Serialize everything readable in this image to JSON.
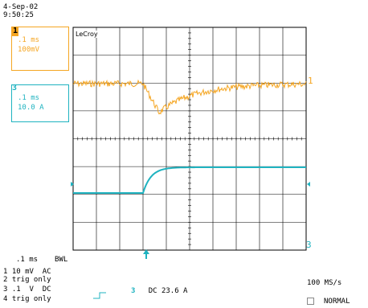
{
  "header": {
    "date": "4-Sep-02",
    "time": "9:50:25"
  },
  "brand": "LeCroy",
  "channels": [
    {
      "num": "1",
      "timebase": ".1 ms",
      "scale": "100mV",
      "color": "#f5a623"
    },
    {
      "num": "3",
      "timebase": ".1 ms",
      "scale": "10.0 A",
      "color": "#1fb3c0"
    }
  ],
  "markers": {
    "ch1_level": "1",
    "ch3_level": "3"
  },
  "footer": {
    "timebase": ".1 ms",
    "bwl": "BWL",
    "line1": "1 10 mV  AC",
    "line2": "2 trig only",
    "line3": "3 .1  V  DC",
    "line4": "4 trig only",
    "ch3_num": "3",
    "ch3_reading": "DC 23.6 A",
    "sample_rate": "100 MS/s",
    "trigger_mode": "NORMAL"
  },
  "colors": {
    "ch1": "#f5a623",
    "ch3": "#1fb3c0",
    "grid": "#000000"
  }
}
